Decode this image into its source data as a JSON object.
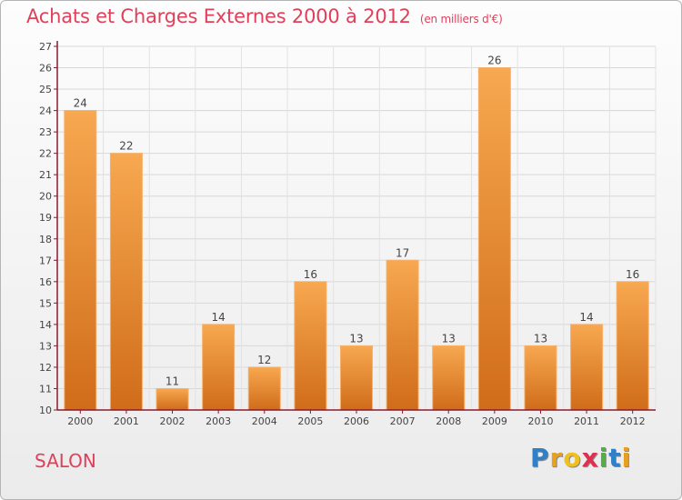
{
  "header": {
    "title": "Achats et Charges Externes 2000 à 2012",
    "subtitle": "(en milliers d'€)"
  },
  "location": {
    "name": "SALON"
  },
  "brand": {
    "logo_letters": [
      "P",
      "r",
      "o",
      "x",
      "i",
      "t",
      "i"
    ],
    "logo_colors": [
      "#2f80c8",
      "#e8a020",
      "#f0c020",
      "#e03050",
      "#50b040",
      "#2f80c8",
      "#e8a020"
    ]
  },
  "colors": {
    "accent": "#e0405a",
    "bar_light": "#f5a04c",
    "bar_dark": "#cf6a18",
    "axis": "#8b1a2e"
  },
  "chart_data": {
    "type": "bar",
    "title": "Achats et Charges Externes 2000 à 2012",
    "unit": "en milliers d'€",
    "categories": [
      "2000",
      "2001",
      "2002",
      "2003",
      "2004",
      "2005",
      "2006",
      "2007",
      "2008",
      "2009",
      "2010",
      "2011",
      "2012"
    ],
    "values": [
      24,
      22,
      11,
      14,
      12,
      16,
      13,
      17,
      13,
      26,
      13,
      14,
      16
    ],
    "xlabel": "",
    "ylabel": "",
    "ylim": [
      10,
      27
    ],
    "yticks": [
      10,
      11,
      12,
      13,
      14,
      15,
      16,
      17,
      18,
      19,
      20,
      21,
      22,
      23,
      24,
      25,
      26,
      27
    ],
    "grid": true
  }
}
